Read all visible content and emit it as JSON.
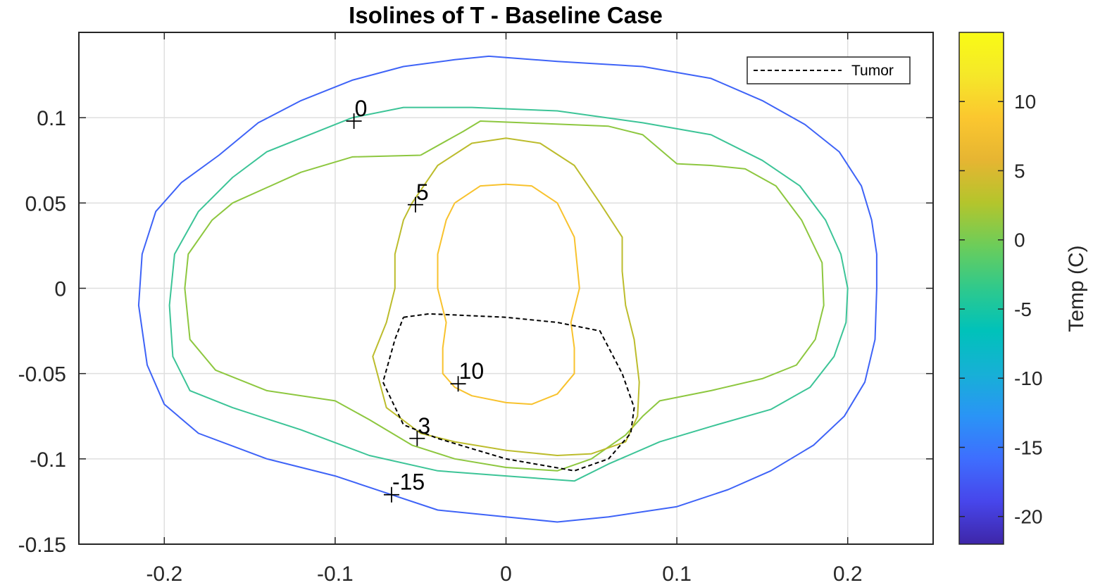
{
  "chart_data": {
    "type": "contour",
    "title": "Isolines of T - Baseline Case",
    "xlim": [
      -0.25,
      0.25
    ],
    "ylim": [
      -0.15,
      0.15
    ],
    "x_ticks": [
      -0.2,
      -0.1,
      0,
      0.1,
      0.2
    ],
    "x_tick_labels": [
      "-0.2",
      "-0.1",
      "0",
      "0.1",
      "0.2"
    ],
    "y_ticks": [
      0.1,
      0.05,
      0,
      -0.05,
      -0.1,
      -0.15
    ],
    "y_tick_labels": [
      "0.1",
      "0.05",
      "0",
      "-0.05",
      "-0.1",
      "-0.15"
    ],
    "grid": true,
    "legend": {
      "position": "top-right",
      "entries": [
        {
          "label": "Tumor",
          "style": "dashed",
          "color": "#000000"
        }
      ]
    },
    "colorbar": {
      "label": "Temp (C)",
      "range": [
        -22,
        15
      ],
      "ticks": [
        10,
        5,
        0,
        -5,
        -10,
        -15,
        -20
      ],
      "tick_labels": [
        "10",
        "5",
        "0",
        "-5",
        "-10",
        "-15",
        "-20"
      ],
      "colormap": [
        "#3e26a8",
        "#4746eb",
        "#3e6efe",
        "#2a94f6",
        "#17b0d6",
        "#00c2ba",
        "#2fc98c",
        "#6ccd5a",
        "#b4c52c",
        "#e6b532",
        "#fbc72f",
        "#f5e829",
        "#f9fb15"
      ]
    },
    "series": [
      {
        "level": -15,
        "color": "#3e63f7",
        "points": [
          [
            -0.01,
            0.136
          ],
          [
            0.03,
            0.133
          ],
          [
            0.08,
            0.13
          ],
          [
            0.12,
            0.123
          ],
          [
            0.15,
            0.11
          ],
          [
            0.175,
            0.096
          ],
          [
            0.195,
            0.08
          ],
          [
            0.208,
            0.06
          ],
          [
            0.214,
            0.04
          ],
          [
            0.217,
            0.02
          ],
          [
            0.217,
            0.0
          ],
          [
            0.216,
            -0.03
          ],
          [
            0.21,
            -0.055
          ],
          [
            0.198,
            -0.075
          ],
          [
            0.18,
            -0.092
          ],
          [
            0.155,
            -0.107
          ],
          [
            0.13,
            -0.118
          ],
          [
            0.1,
            -0.128
          ],
          [
            0.06,
            -0.134
          ],
          [
            0.03,
            -0.137
          ],
          [
            0.0,
            -0.134
          ],
          [
            -0.04,
            -0.13
          ],
          [
            -0.07,
            -0.12
          ],
          [
            -0.1,
            -0.11
          ],
          [
            -0.14,
            -0.1
          ],
          [
            -0.18,
            -0.085
          ],
          [
            -0.2,
            -0.068
          ],
          [
            -0.21,
            -0.045
          ],
          [
            -0.215,
            -0.01
          ],
          [
            -0.213,
            0.02
          ],
          [
            -0.205,
            0.045
          ],
          [
            -0.19,
            0.062
          ],
          [
            -0.168,
            0.078
          ],
          [
            -0.145,
            0.097
          ],
          [
            -0.12,
            0.11
          ],
          [
            -0.09,
            0.122
          ],
          [
            -0.06,
            0.13
          ],
          [
            -0.03,
            0.134
          ],
          [
            -0.01,
            0.136
          ]
        ]
      },
      {
        "level": 0,
        "color": "#3cc497",
        "points": [
          [
            -0.09,
            0.1
          ],
          [
            -0.06,
            0.106
          ],
          [
            -0.02,
            0.106
          ],
          [
            0.03,
            0.104
          ],
          [
            0.08,
            0.097
          ],
          [
            0.12,
            0.09
          ],
          [
            0.15,
            0.075
          ],
          [
            0.172,
            0.06
          ],
          [
            0.187,
            0.04
          ],
          [
            0.196,
            0.02
          ],
          [
            0.2,
            0.0
          ],
          [
            0.199,
            -0.02
          ],
          [
            0.192,
            -0.04
          ],
          [
            0.178,
            -0.058
          ],
          [
            0.155,
            -0.071
          ],
          [
            0.12,
            -0.081
          ],
          [
            0.09,
            -0.09
          ],
          [
            0.06,
            -0.103
          ],
          [
            0.04,
            -0.113
          ],
          [
            0.0,
            -0.11
          ],
          [
            -0.04,
            -0.107
          ],
          [
            -0.08,
            -0.098
          ],
          [
            -0.12,
            -0.083
          ],
          [
            -0.16,
            -0.07
          ],
          [
            -0.185,
            -0.06
          ],
          [
            -0.195,
            -0.04
          ],
          [
            -0.197,
            -0.01
          ],
          [
            -0.194,
            0.02
          ],
          [
            -0.18,
            0.045
          ],
          [
            -0.16,
            0.065
          ],
          [
            -0.14,
            0.08
          ],
          [
            -0.11,
            0.092
          ],
          [
            -0.09,
            0.1
          ]
        ]
      },
      {
        "level": 3,
        "color": "#8dc73f",
        "points": [
          [
            -0.05,
            0.078
          ],
          [
            -0.025,
            0.092
          ],
          [
            -0.015,
            0.098
          ],
          [
            0.01,
            0.097
          ],
          [
            0.06,
            0.095
          ],
          [
            0.08,
            0.09
          ],
          [
            0.1,
            0.073
          ],
          [
            0.12,
            0.072
          ],
          [
            0.14,
            0.07
          ],
          [
            0.158,
            0.06
          ],
          [
            0.173,
            0.04
          ],
          [
            0.185,
            0.015
          ],
          [
            0.186,
            -0.01
          ],
          [
            0.181,
            -0.03
          ],
          [
            0.17,
            -0.045
          ],
          [
            0.15,
            -0.053
          ],
          [
            0.12,
            -0.06
          ],
          [
            0.09,
            -0.066
          ],
          [
            0.08,
            -0.075
          ],
          [
            0.07,
            -0.086
          ],
          [
            0.05,
            -0.1
          ],
          [
            0.03,
            -0.107
          ],
          [
            0.0,
            -0.105
          ],
          [
            -0.03,
            -0.1
          ],
          [
            -0.055,
            -0.092
          ],
          [
            -0.08,
            -0.077
          ],
          [
            -0.1,
            -0.066
          ],
          [
            -0.14,
            -0.06
          ],
          [
            -0.17,
            -0.048
          ],
          [
            -0.185,
            -0.03
          ],
          [
            -0.188,
            0.0
          ],
          [
            -0.186,
            0.02
          ],
          [
            -0.172,
            0.04
          ],
          [
            -0.16,
            0.05
          ],
          [
            -0.12,
            0.068
          ],
          [
            -0.09,
            0.077
          ],
          [
            -0.05,
            0.078
          ]
        ]
      },
      {
        "level": 5,
        "color": "#bcbc2c",
        "points": [
          [
            -0.055,
            0.05
          ],
          [
            -0.04,
            0.072
          ],
          [
            -0.02,
            0.085
          ],
          [
            0.0,
            0.088
          ],
          [
            0.02,
            0.085
          ],
          [
            0.04,
            0.072
          ],
          [
            0.055,
            0.05
          ],
          [
            0.068,
            0.03
          ],
          [
            0.068,
            0.01
          ],
          [
            0.07,
            -0.01
          ],
          [
            0.075,
            -0.03
          ],
          [
            0.078,
            -0.055
          ],
          [
            0.077,
            -0.075
          ],
          [
            0.07,
            -0.09
          ],
          [
            0.05,
            -0.097
          ],
          [
            0.03,
            -0.098
          ],
          [
            0.0,
            -0.095
          ],
          [
            -0.03,
            -0.09
          ],
          [
            -0.05,
            -0.085
          ],
          [
            -0.07,
            -0.07
          ],
          [
            -0.078,
            -0.04
          ],
          [
            -0.07,
            -0.02
          ],
          [
            -0.065,
            0.0
          ],
          [
            -0.065,
            0.02
          ],
          [
            -0.06,
            0.04
          ],
          [
            -0.055,
            0.05
          ]
        ]
      },
      {
        "level": 10,
        "color": "#f8c22d",
        "points": [
          [
            -0.03,
            0.05
          ],
          [
            -0.015,
            0.06
          ],
          [
            0.0,
            0.061
          ],
          [
            0.015,
            0.06
          ],
          [
            0.03,
            0.05
          ],
          [
            0.04,
            0.03
          ],
          [
            0.043,
            0.0
          ],
          [
            0.038,
            -0.02
          ],
          [
            0.04,
            -0.035
          ],
          [
            0.04,
            -0.05
          ],
          [
            0.03,
            -0.062
          ],
          [
            0.015,
            -0.068
          ],
          [
            0.0,
            -0.067
          ],
          [
            -0.02,
            -0.063
          ],
          [
            -0.03,
            -0.058
          ],
          [
            -0.037,
            -0.05
          ],
          [
            -0.037,
            -0.035
          ],
          [
            -0.035,
            -0.02
          ],
          [
            -0.04,
            0.0
          ],
          [
            -0.04,
            0.02
          ],
          [
            -0.035,
            0.04
          ],
          [
            -0.03,
            0.05
          ]
        ]
      },
      {
        "name": "Tumor",
        "level": null,
        "color": "#000000",
        "dashed": true,
        "points": [
          [
            -0.06,
            -0.017
          ],
          [
            -0.045,
            -0.015
          ],
          [
            0.0,
            -0.017
          ],
          [
            0.03,
            -0.02
          ],
          [
            0.055,
            -0.025
          ],
          [
            0.068,
            -0.05
          ],
          [
            0.075,
            -0.07
          ],
          [
            0.073,
            -0.085
          ],
          [
            0.06,
            -0.1
          ],
          [
            0.04,
            -0.107
          ],
          [
            0.0,
            -0.1
          ],
          [
            -0.04,
            -0.088
          ],
          [
            -0.06,
            -0.08
          ],
          [
            -0.072,
            -0.055
          ],
          [
            -0.065,
            -0.03
          ],
          [
            -0.06,
            -0.017
          ]
        ]
      }
    ],
    "annotations": [
      {
        "text": "0",
        "x": -0.089,
        "y": 0.098
      },
      {
        "text": "5",
        "x": -0.053,
        "y": 0.049
      },
      {
        "text": "10",
        "x": -0.028,
        "y": -0.056
      },
      {
        "text": "3",
        "x": -0.052,
        "y": -0.088
      },
      {
        "text": "-15",
        "x": -0.067,
        "y": -0.121
      }
    ]
  }
}
